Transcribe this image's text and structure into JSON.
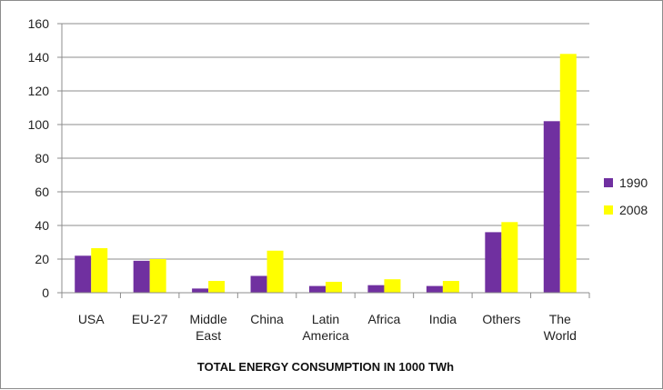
{
  "chart_data": {
    "type": "bar",
    "title": "",
    "xlabel": "TOTAL ENERGY CONSUMPTION IN 1000 TWh",
    "ylabel": "",
    "ylim": [
      0,
      160
    ],
    "yticks": [
      0,
      20,
      40,
      60,
      80,
      100,
      120,
      140,
      160
    ],
    "grid": true,
    "legend": "right",
    "categories": [
      [
        "USA"
      ],
      [
        "EU-27"
      ],
      [
        "Middle",
        "East"
      ],
      [
        "China"
      ],
      [
        "Latin",
        "America"
      ],
      [
        "Africa"
      ],
      [
        "India"
      ],
      [
        "Others"
      ],
      [
        "The",
        "World"
      ]
    ],
    "series": [
      {
        "name": "1990",
        "color": "#7030a0",
        "values": [
          22,
          19,
          2.5,
          10,
          4,
          4.5,
          4,
          36,
          102
        ]
      },
      {
        "name": "2008",
        "color": "#ffff00",
        "values": [
          26.5,
          20,
          7,
          25,
          6.5,
          8,
          7,
          42,
          142
        ]
      }
    ]
  }
}
